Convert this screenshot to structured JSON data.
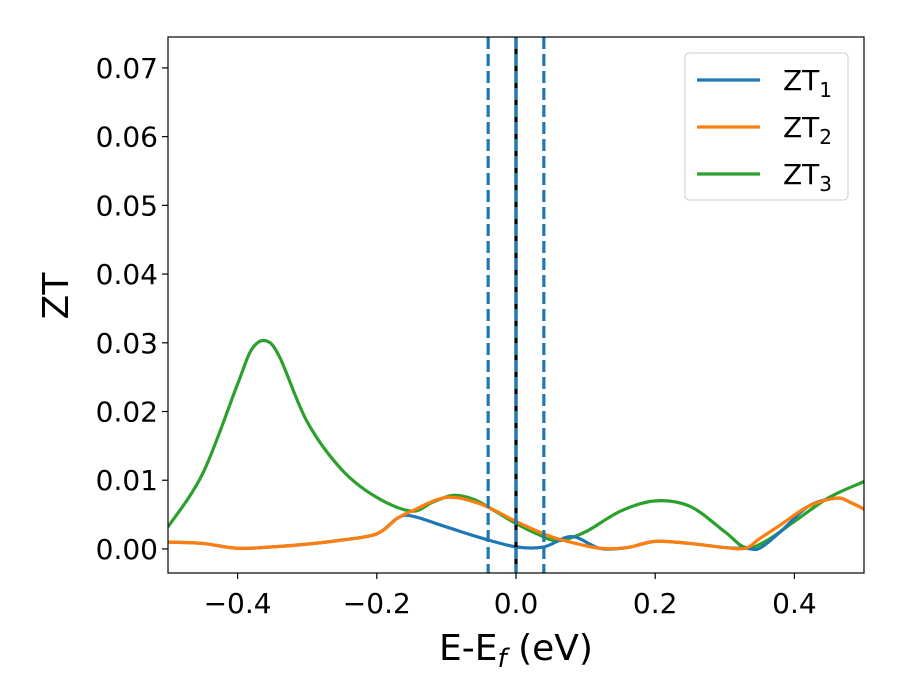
{
  "chart_data": {
    "type": "line",
    "title": "",
    "xlabel": "E-E",
    "xlabel_sub": "f",
    "xlabel_unit": " (eV)",
    "ylabel": "ZT",
    "xlim": [
      -0.5,
      0.5
    ],
    "ylim": [
      -0.0035,
      0.0745
    ],
    "xticks": [
      -0.4,
      -0.2,
      0.0,
      0.2,
      0.4
    ],
    "xtick_labels": [
      "−0.4",
      "−0.2",
      "0.0",
      "0.2",
      "0.4"
    ],
    "yticks": [
      0.0,
      0.01,
      0.02,
      0.03,
      0.04,
      0.05,
      0.06,
      0.07
    ],
    "ytick_labels": [
      "0.00",
      "0.01",
      "0.02",
      "0.03",
      "0.04",
      "0.05",
      "0.06",
      "0.07"
    ],
    "grid": false,
    "legend_position": "top-right",
    "vertical_lines": [
      {
        "x": -0.04,
        "style": "dashed",
        "color": "#1f77b4"
      },
      {
        "x": 0.0,
        "style": "solid",
        "color": "#000000"
      },
      {
        "x": 0.0,
        "style": "dashed",
        "color": "#1f77b4"
      },
      {
        "x": 0.04,
        "style": "dashed",
        "color": "#1f77b4"
      }
    ],
    "series": [
      {
        "name": "ZT",
        "name_sub": "1",
        "color": "#1f77b4",
        "points": [
          [
            -0.5,
            0.001
          ],
          [
            -0.45,
            0.0008
          ],
          [
            -0.4,
            0.0001
          ],
          [
            -0.35,
            0.0003
          ],
          [
            -0.3,
            0.0007
          ],
          [
            -0.25,
            0.0013
          ],
          [
            -0.2,
            0.0022
          ],
          [
            -0.17,
            0.0045
          ],
          [
            -0.15,
            0.0048
          ],
          [
            -0.1,
            0.0032
          ],
          [
            -0.05,
            0.0016
          ],
          [
            0.0,
            0.0003
          ],
          [
            0.04,
            0.0003
          ],
          [
            0.08,
            0.0018
          ],
          [
            0.12,
            0.0001
          ],
          [
            0.16,
            0.0002
          ],
          [
            0.2,
            0.0011
          ],
          [
            0.25,
            0.0008
          ],
          [
            0.3,
            0.0002
          ],
          [
            0.33,
            0.0001
          ],
          [
            0.35,
            0.0001
          ],
          [
            0.38,
            0.0025
          ],
          [
            0.42,
            0.0062
          ],
          [
            0.46,
            0.0074
          ],
          [
            0.48,
            0.0068
          ],
          [
            0.5,
            0.0058
          ]
        ]
      },
      {
        "name": "ZT",
        "name_sub": "2",
        "color": "#ff7f0e",
        "points": [
          [
            -0.5,
            0.001
          ],
          [
            -0.45,
            0.0008
          ],
          [
            -0.4,
            0.0001
          ],
          [
            -0.35,
            0.0003
          ],
          [
            -0.3,
            0.0007
          ],
          [
            -0.25,
            0.0013
          ],
          [
            -0.2,
            0.0022
          ],
          [
            -0.17,
            0.0045
          ],
          [
            -0.15,
            0.0055
          ],
          [
            -0.1,
            0.0075
          ],
          [
            -0.05,
            0.0065
          ],
          [
            0.0,
            0.004
          ],
          [
            0.04,
            0.0022
          ],
          [
            0.07,
            0.0012
          ],
          [
            0.12,
            0.0001
          ],
          [
            0.16,
            0.0002
          ],
          [
            0.2,
            0.0011
          ],
          [
            0.25,
            0.0008
          ],
          [
            0.3,
            0.0002
          ],
          [
            0.33,
            0.0001
          ],
          [
            0.35,
            0.0015
          ],
          [
            0.38,
            0.0035
          ],
          [
            0.42,
            0.0062
          ],
          [
            0.46,
            0.0074
          ],
          [
            0.48,
            0.0068
          ],
          [
            0.5,
            0.0058
          ]
        ]
      },
      {
        "name": "ZT",
        "name_sub": "3",
        "color": "#2ca02c",
        "points": [
          [
            -0.5,
            0.0032
          ],
          [
            -0.45,
            0.011
          ],
          [
            -0.4,
            0.024
          ],
          [
            -0.38,
            0.029
          ],
          [
            -0.36,
            0.0303
          ],
          [
            -0.34,
            0.028
          ],
          [
            -0.3,
            0.0185
          ],
          [
            -0.25,
            0.0115
          ],
          [
            -0.2,
            0.0075
          ],
          [
            -0.15,
            0.0055
          ],
          [
            -0.12,
            0.0068
          ],
          [
            -0.09,
            0.0078
          ],
          [
            -0.06,
            0.0072
          ],
          [
            -0.03,
            0.0055
          ],
          [
            0.0,
            0.0037
          ],
          [
            0.03,
            0.0022
          ],
          [
            0.06,
            0.0012
          ],
          [
            0.1,
            0.0025
          ],
          [
            0.15,
            0.0055
          ],
          [
            0.2,
            0.007
          ],
          [
            0.25,
            0.0062
          ],
          [
            0.3,
            0.0025
          ],
          [
            0.33,
            0.0002
          ],
          [
            0.36,
            0.0012
          ],
          [
            0.4,
            0.004
          ],
          [
            0.45,
            0.0075
          ],
          [
            0.5,
            0.0098
          ]
        ]
      }
    ]
  }
}
